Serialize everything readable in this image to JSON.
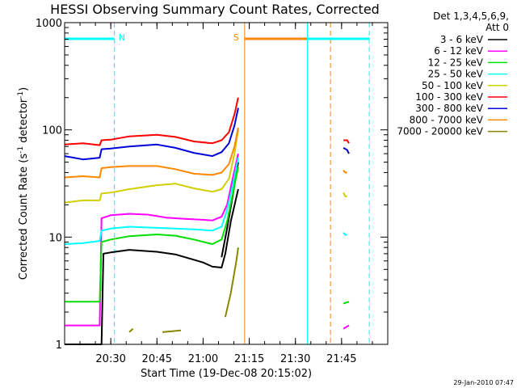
{
  "chart_data": {
    "type": "line",
    "title": "HESSI Observing Summary Count Rates, Corrected",
    "xlabel": "Start Time (19-Dec-08 20:15:02)",
    "ylabel_pre": "Corrected Count Rate (s",
    "ylabel_sup1": "-1",
    "ylabel_mid": " detector",
    "ylabel_sup2": "-1",
    "ylabel_post": ")",
    "yscale": "log",
    "xlim": [
      20.25,
      22.0
    ],
    "ylim": [
      1,
      1000
    ],
    "x_ticks": [
      {
        "value": 20.5,
        "label": "20:30"
      },
      {
        "value": 20.75,
        "label": "20:45"
      },
      {
        "value": 21.0,
        "label": "21:00"
      },
      {
        "value": 21.25,
        "label": "21:15"
      },
      {
        "value": 21.5,
        "label": "21:30"
      },
      {
        "value": 21.75,
        "label": "21:45"
      }
    ],
    "y_ticks": [
      {
        "value": 1,
        "label": "1"
      },
      {
        "value": 10,
        "label": "10"
      },
      {
        "value": 100,
        "label": "100"
      },
      {
        "value": 1000,
        "label": "1000"
      }
    ],
    "legend_header": [
      "Det 1,3,4,5,6,9,",
      "Att 0"
    ],
    "legend_position": "right",
    "series": [
      {
        "name": "3 - 6 keV",
        "color": "#000000",
        "segments": [
          {
            "x": [
              20.25,
              20.45,
              20.46,
              20.5,
              20.6,
              20.75,
              20.85,
              21.0,
              21.05,
              21.1,
              21.12,
              21.15,
              21.19
            ],
            "y": [
              1,
              1,
              7,
              7.2,
              7.6,
              7.3,
              6.9,
              5.8,
              5.3,
              5.2,
              7,
              14,
              28
            ]
          },
          {
            "x": [
              21.1,
              21.13,
              21.16,
              21.19
            ],
            "y": [
              6.5,
              12,
              24,
              50
            ]
          }
        ]
      },
      {
        "name": "6 - 12 keV",
        "color": "#ff00ff",
        "segments": [
          {
            "x": [
              20.25,
              20.44,
              20.45,
              20.5,
              20.6,
              20.7,
              20.8,
              20.9,
              21.0,
              21.05,
              21.1,
              21.13,
              21.16,
              21.19
            ],
            "y": [
              1.5,
              1.5,
              15,
              16,
              16.5,
              16.2,
              15.2,
              14.8,
              14.5,
              14.3,
              15.5,
              20,
              35,
              60
            ]
          },
          {
            "x": [
              21.76,
              21.79
            ],
            "y": [
              1.4,
              1.5
            ]
          }
        ]
      },
      {
        "name": "12 - 25 keV",
        "color": "#00e000",
        "segments": [
          {
            "x": [
              20.25,
              20.44,
              20.45,
              20.5,
              20.6,
              20.75,
              20.85,
              20.95,
              21.05,
              21.1,
              21.13,
              21.16,
              21.19
            ],
            "y": [
              2.5,
              2.5,
              9,
              9.5,
              10.2,
              10.6,
              10.3,
              9.5,
              8.6,
              9.5,
              14,
              25,
              45
            ]
          },
          {
            "x": [
              21.76,
              21.79
            ],
            "y": [
              2.4,
              2.5
            ]
          }
        ]
      },
      {
        "name": "25 - 50 keV",
        "color": "#00ffff",
        "segments": [
          {
            "x": [
              20.25,
              20.35,
              20.44,
              20.45,
              20.5,
              20.6,
              20.75,
              20.85,
              20.95,
              21.05,
              21.1,
              21.13,
              21.16,
              21.19
            ],
            "y": [
              8.6,
              8.8,
              9.2,
              11.5,
              12,
              12.5,
              12.2,
              12,
              11.8,
              11.5,
              12.5,
              18,
              30,
              55
            ]
          },
          {
            "x": [
              21.76,
              21.77,
              21.78
            ],
            "y": [
              11,
              10.5,
              10.5
            ]
          }
        ]
      },
      {
        "name": "50 - 100 keV",
        "color": "#d0d000",
        "segments": [
          {
            "x": [
              20.25,
              20.35,
              20.44,
              20.45,
              20.5,
              20.6,
              20.75,
              20.85,
              20.95,
              21.05,
              21.1,
              21.14,
              21.17,
              21.19
            ],
            "y": [
              21,
              22,
              22,
              25.5,
              26,
              28,
              30.5,
              31.5,
              28.5,
              26.5,
              28,
              35,
              60,
              100
            ]
          },
          {
            "x": [
              21.76,
              21.77,
              21.78
            ],
            "y": [
              26,
              24,
              24
            ]
          }
        ]
      },
      {
        "name": "100 - 300 keV",
        "color": "#ff0000",
        "segments": [
          {
            "x": [
              20.25,
              20.35,
              20.44,
              20.45,
              20.5,
              20.6,
              20.75,
              20.85,
              20.95,
              21.05,
              21.1,
              21.14,
              21.17,
              21.19
            ],
            "y": [
              73,
              75,
              72,
              80,
              81,
              87,
              90,
              86,
              78,
              75,
              80,
              95,
              140,
              200
            ]
          },
          {
            "x": [
              21.76,
              21.78,
              21.79
            ],
            "y": [
              80,
              80,
              75
            ]
          }
        ]
      },
      {
        "name": "300 - 800 keV",
        "color": "#0000dd",
        "segments": [
          {
            "x": [
              20.25,
              20.35,
              20.44,
              20.45,
              20.5,
              20.6,
              20.75,
              20.85,
              20.95,
              21.05,
              21.1,
              21.14,
              21.17,
              21.19
            ],
            "y": [
              57,
              53,
              55,
              66,
              67,
              70,
              73,
              68,
              61,
              57,
              62,
              75,
              110,
              160
            ]
          },
          {
            "x": [
              21.76,
              21.78,
              21.79
            ],
            "y": [
              68,
              65,
              60
            ]
          }
        ]
      },
      {
        "name": "800 - 7000 keV",
        "color": "#ff8800",
        "segments": [
          {
            "x": [
              20.25,
              20.35,
              20.44,
              20.45,
              20.5,
              20.6,
              20.75,
              20.85,
              20.95,
              21.05,
              21.1,
              21.14,
              21.17,
              21.19
            ],
            "y": [
              36,
              37,
              36,
              44,
              45,
              46,
              46,
              43,
              39,
              38,
              40,
              48,
              70,
              105
            ]
          },
          {
            "x": [
              21.76,
              21.77,
              21.78
            ],
            "y": [
              42,
              40,
              40
            ]
          }
        ]
      },
      {
        "name": "7000 - 20000 keV",
        "color": "#888800",
        "segments": [
          {
            "x": [
              20.6,
              20.62
            ],
            "y": [
              1.3,
              1.4
            ]
          },
          {
            "x": [
              20.78,
              20.88
            ],
            "y": [
              1.3,
              1.35
            ]
          },
          {
            "x": [
              21.12,
              21.15,
              21.18,
              21.19
            ],
            "y": [
              1.8,
              3,
              6,
              8
            ]
          }
        ]
      }
    ],
    "states": [
      {
        "label": "N",
        "color": "#00ffff",
        "dashed": [
          20.52
        ],
        "solid": [],
        "bars": [
          [
            20.25,
            20.52
          ]
        ]
      },
      {
        "label": "S",
        "color": "#ff8800",
        "dashed": [
          21.69
        ],
        "solid": [
          21.225
        ],
        "bars": [
          [
            21.225,
            21.69
          ]
        ]
      },
      {
        "label": "",
        "color": "#00ffff",
        "dashed": [
          21.9
        ],
        "solid": [
          21.565
        ],
        "bars": [
          [
            21.565,
            21.9
          ]
        ]
      }
    ],
    "timestamp": "29-Jan-2010 07:47"
  }
}
